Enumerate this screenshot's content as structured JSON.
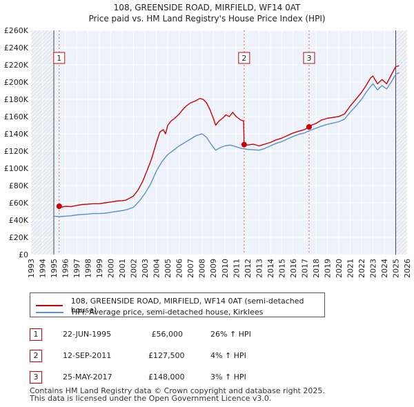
{
  "chart_data": {
    "type": "line",
    "title": "108, GREENSIDE ROAD, MIRFIELD, WF14 0AT",
    "subtitle": "Price paid vs. HM Land Registry's House Price Index (HPI)",
    "xlim": [
      1993,
      2026
    ],
    "ylim": [
      0,
      260000
    ],
    "x_ticks": [
      "1993",
      "1994",
      "1995",
      "1996",
      "1997",
      "1998",
      "1999",
      "2000",
      "2001",
      "2002",
      "2003",
      "2004",
      "2005",
      "2006",
      "2007",
      "2008",
      "2009",
      "2010",
      "2011",
      "2012",
      "2013",
      "2014",
      "2015",
      "2016",
      "2017",
      "2018",
      "2019",
      "2020",
      "2021",
      "2022",
      "2023",
      "2024",
      "2025",
      "2026"
    ],
    "y_ticks": [
      {
        "value": 0,
        "label": "£0"
      },
      {
        "value": 20000,
        "label": "£20K"
      },
      {
        "value": 40000,
        "label": "£40K"
      },
      {
        "value": 60000,
        "label": "£60K"
      },
      {
        "value": 80000,
        "label": "£80K"
      },
      {
        "value": 100000,
        "label": "£100K"
      },
      {
        "value": 120000,
        "label": "£120K"
      },
      {
        "value": 140000,
        "label": "£140K"
      },
      {
        "value": 160000,
        "label": "£160K"
      },
      {
        "value": 180000,
        "label": "£180K"
      },
      {
        "value": 200000,
        "label": "£200K"
      },
      {
        "value": 220000,
        "label": "£220K"
      },
      {
        "value": 240000,
        "label": "£240K"
      },
      {
        "value": 260000,
        "label": "£260K"
      }
    ],
    "hatch_before": 1995.0,
    "hatch_after": 2025.0,
    "series": [
      {
        "name": "108, GREENSIDE ROAD, MIRFIELD, WF14 0AT (semi-detached house)",
        "color": "#cc0000",
        "points": [
          [
            1995.47,
            56000
          ],
          [
            1995.7,
            55000
          ],
          [
            1996.0,
            56000
          ],
          [
            1996.5,
            55500
          ],
          [
            1997.0,
            57000
          ],
          [
            1997.5,
            58000
          ],
          [
            1998.0,
            58500
          ],
          [
            1998.5,
            59000
          ],
          [
            1999.0,
            59000
          ],
          [
            1999.5,
            60000
          ],
          [
            2000.0,
            61000
          ],
          [
            2000.5,
            62000
          ],
          [
            2001.0,
            62500
          ],
          [
            2001.3,
            63000
          ],
          [
            2001.6,
            65000
          ],
          [
            2002.0,
            68000
          ],
          [
            2002.4,
            75000
          ],
          [
            2002.8,
            85000
          ],
          [
            2003.2,
            98000
          ],
          [
            2003.6,
            112000
          ],
          [
            2004.0,
            130000
          ],
          [
            2004.3,
            142000
          ],
          [
            2004.6,
            145000
          ],
          [
            2004.8,
            140000
          ],
          [
            2005.0,
            150000
          ],
          [
            2005.3,
            155000
          ],
          [
            2005.6,
            158000
          ],
          [
            2006.0,
            163000
          ],
          [
            2006.3,
            168000
          ],
          [
            2006.6,
            172000
          ],
          [
            2007.0,
            176000
          ],
          [
            2007.4,
            178000
          ],
          [
            2007.8,
            181000
          ],
          [
            2008.1,
            180000
          ],
          [
            2008.4,
            176000
          ],
          [
            2008.7,
            168000
          ],
          [
            2009.0,
            158000
          ],
          [
            2009.2,
            150000
          ],
          [
            2009.5,
            155000
          ],
          [
            2009.8,
            158000
          ],
          [
            2010.1,
            162000
          ],
          [
            2010.4,
            160000
          ],
          [
            2010.7,
            165000
          ],
          [
            2011.0,
            160000
          ],
          [
            2011.4,
            156000
          ],
          [
            2011.65,
            155000
          ],
          [
            2011.7,
            127500
          ],
          [
            2012.0,
            127000
          ],
          [
            2012.5,
            128000
          ],
          [
            2013.0,
            126000
          ],
          [
            2013.5,
            128000
          ],
          [
            2014.0,
            130000
          ],
          [
            2014.5,
            133000
          ],
          [
            2015.0,
            135000
          ],
          [
            2015.5,
            138000
          ],
          [
            2016.0,
            141000
          ],
          [
            2016.5,
            143000
          ],
          [
            2017.0,
            145000
          ],
          [
            2017.4,
            148000
          ],
          [
            2017.6,
            150000
          ],
          [
            2018.0,
            152000
          ],
          [
            2018.5,
            156000
          ],
          [
            2019.0,
            158000
          ],
          [
            2019.5,
            159000
          ],
          [
            2020.0,
            160000
          ],
          [
            2020.5,
            163000
          ],
          [
            2021.0,
            172000
          ],
          [
            2021.5,
            180000
          ],
          [
            2022.0,
            188000
          ],
          [
            2022.4,
            196000
          ],
          [
            2022.8,
            205000
          ],
          [
            2023.0,
            207000
          ],
          [
            2023.4,
            198000
          ],
          [
            2023.8,
            203000
          ],
          [
            2024.2,
            198000
          ],
          [
            2024.6,
            208000
          ],
          [
            2025.0,
            218000
          ],
          [
            2025.3,
            219000
          ]
        ]
      },
      {
        "name": "HPI: Average price, semi-detached house, Kirklees",
        "color": "#5b8fd0",
        "points": [
          [
            1995.0,
            44500
          ],
          [
            1995.5,
            44000
          ],
          [
            1996.0,
            44500
          ],
          [
            1996.5,
            45000
          ],
          [
            1997.0,
            46000
          ],
          [
            1997.5,
            46500
          ],
          [
            1998.0,
            47000
          ],
          [
            1998.5,
            47500
          ],
          [
            1999.0,
            47500
          ],
          [
            1999.5,
            48000
          ],
          [
            2000.0,
            49000
          ],
          [
            2000.5,
            50000
          ],
          [
            2001.0,
            51000
          ],
          [
            2001.5,
            52500
          ],
          [
            2002.0,
            55000
          ],
          [
            2002.5,
            62000
          ],
          [
            2003.0,
            71000
          ],
          [
            2003.5,
            82000
          ],
          [
            2004.0,
            97000
          ],
          [
            2004.5,
            108000
          ],
          [
            2005.0,
            116000
          ],
          [
            2005.5,
            121000
          ],
          [
            2006.0,
            126000
          ],
          [
            2006.5,
            130000
          ],
          [
            2007.0,
            134000
          ],
          [
            2007.5,
            138000
          ],
          [
            2008.0,
            140000
          ],
          [
            2008.4,
            136000
          ],
          [
            2008.8,
            128000
          ],
          [
            2009.2,
            121000
          ],
          [
            2009.6,
            124000
          ],
          [
            2010.0,
            126000
          ],
          [
            2010.5,
            127000
          ],
          [
            2011.0,
            125000
          ],
          [
            2011.5,
            123000
          ],
          [
            2012.0,
            122000
          ],
          [
            2012.5,
            121500
          ],
          [
            2013.0,
            121000
          ],
          [
            2013.5,
            123000
          ],
          [
            2014.0,
            126000
          ],
          [
            2014.5,
            129000
          ],
          [
            2015.0,
            131000
          ],
          [
            2015.5,
            134000
          ],
          [
            2016.0,
            137000
          ],
          [
            2016.5,
            139500
          ],
          [
            2017.0,
            141000
          ],
          [
            2017.5,
            144000
          ],
          [
            2018.0,
            146500
          ],
          [
            2018.5,
            149000
          ],
          [
            2019.0,
            151000
          ],
          [
            2019.5,
            152500
          ],
          [
            2020.0,
            154000
          ],
          [
            2020.5,
            157000
          ],
          [
            2021.0,
            165000
          ],
          [
            2021.5,
            172000
          ],
          [
            2022.0,
            180000
          ],
          [
            2022.4,
            188000
          ],
          [
            2022.8,
            195000
          ],
          [
            2023.0,
            198000
          ],
          [
            2023.4,
            191000
          ],
          [
            2023.8,
            196000
          ],
          [
            2024.2,
            192000
          ],
          [
            2024.6,
            200000
          ],
          [
            2025.0,
            209000
          ],
          [
            2025.3,
            211000
          ]
        ]
      }
    ],
    "markers": [
      {
        "label": "1",
        "x": 1995.47,
        "y": 56000
      },
      {
        "label": "2",
        "x": 2011.7,
        "y": 127500
      },
      {
        "label": "3",
        "x": 2017.4,
        "y": 148000
      }
    ]
  },
  "legend": {
    "property_label": "108, GREENSIDE ROAD, MIRFIELD, WF14 0AT (semi-detached house)",
    "hpi_label": "HPI: Average price, semi-detached house, Kirklees"
  },
  "sales": [
    {
      "num": "1",
      "date": "22-JUN-1995",
      "price": "£56,000",
      "hpi": "26% ↑ HPI"
    },
    {
      "num": "2",
      "date": "12-SEP-2011",
      "price": "£127,500",
      "hpi": "4% ↑ HPI"
    },
    {
      "num": "3",
      "date": "25-MAY-2017",
      "price": "£148,000",
      "hpi": "3% ↑ HPI"
    }
  ],
  "footer": {
    "line1": "Contains HM Land Registry data © Crown copyright and database right 2025.",
    "line2": "This data is licensed under the Open Government Licence v3.0."
  }
}
